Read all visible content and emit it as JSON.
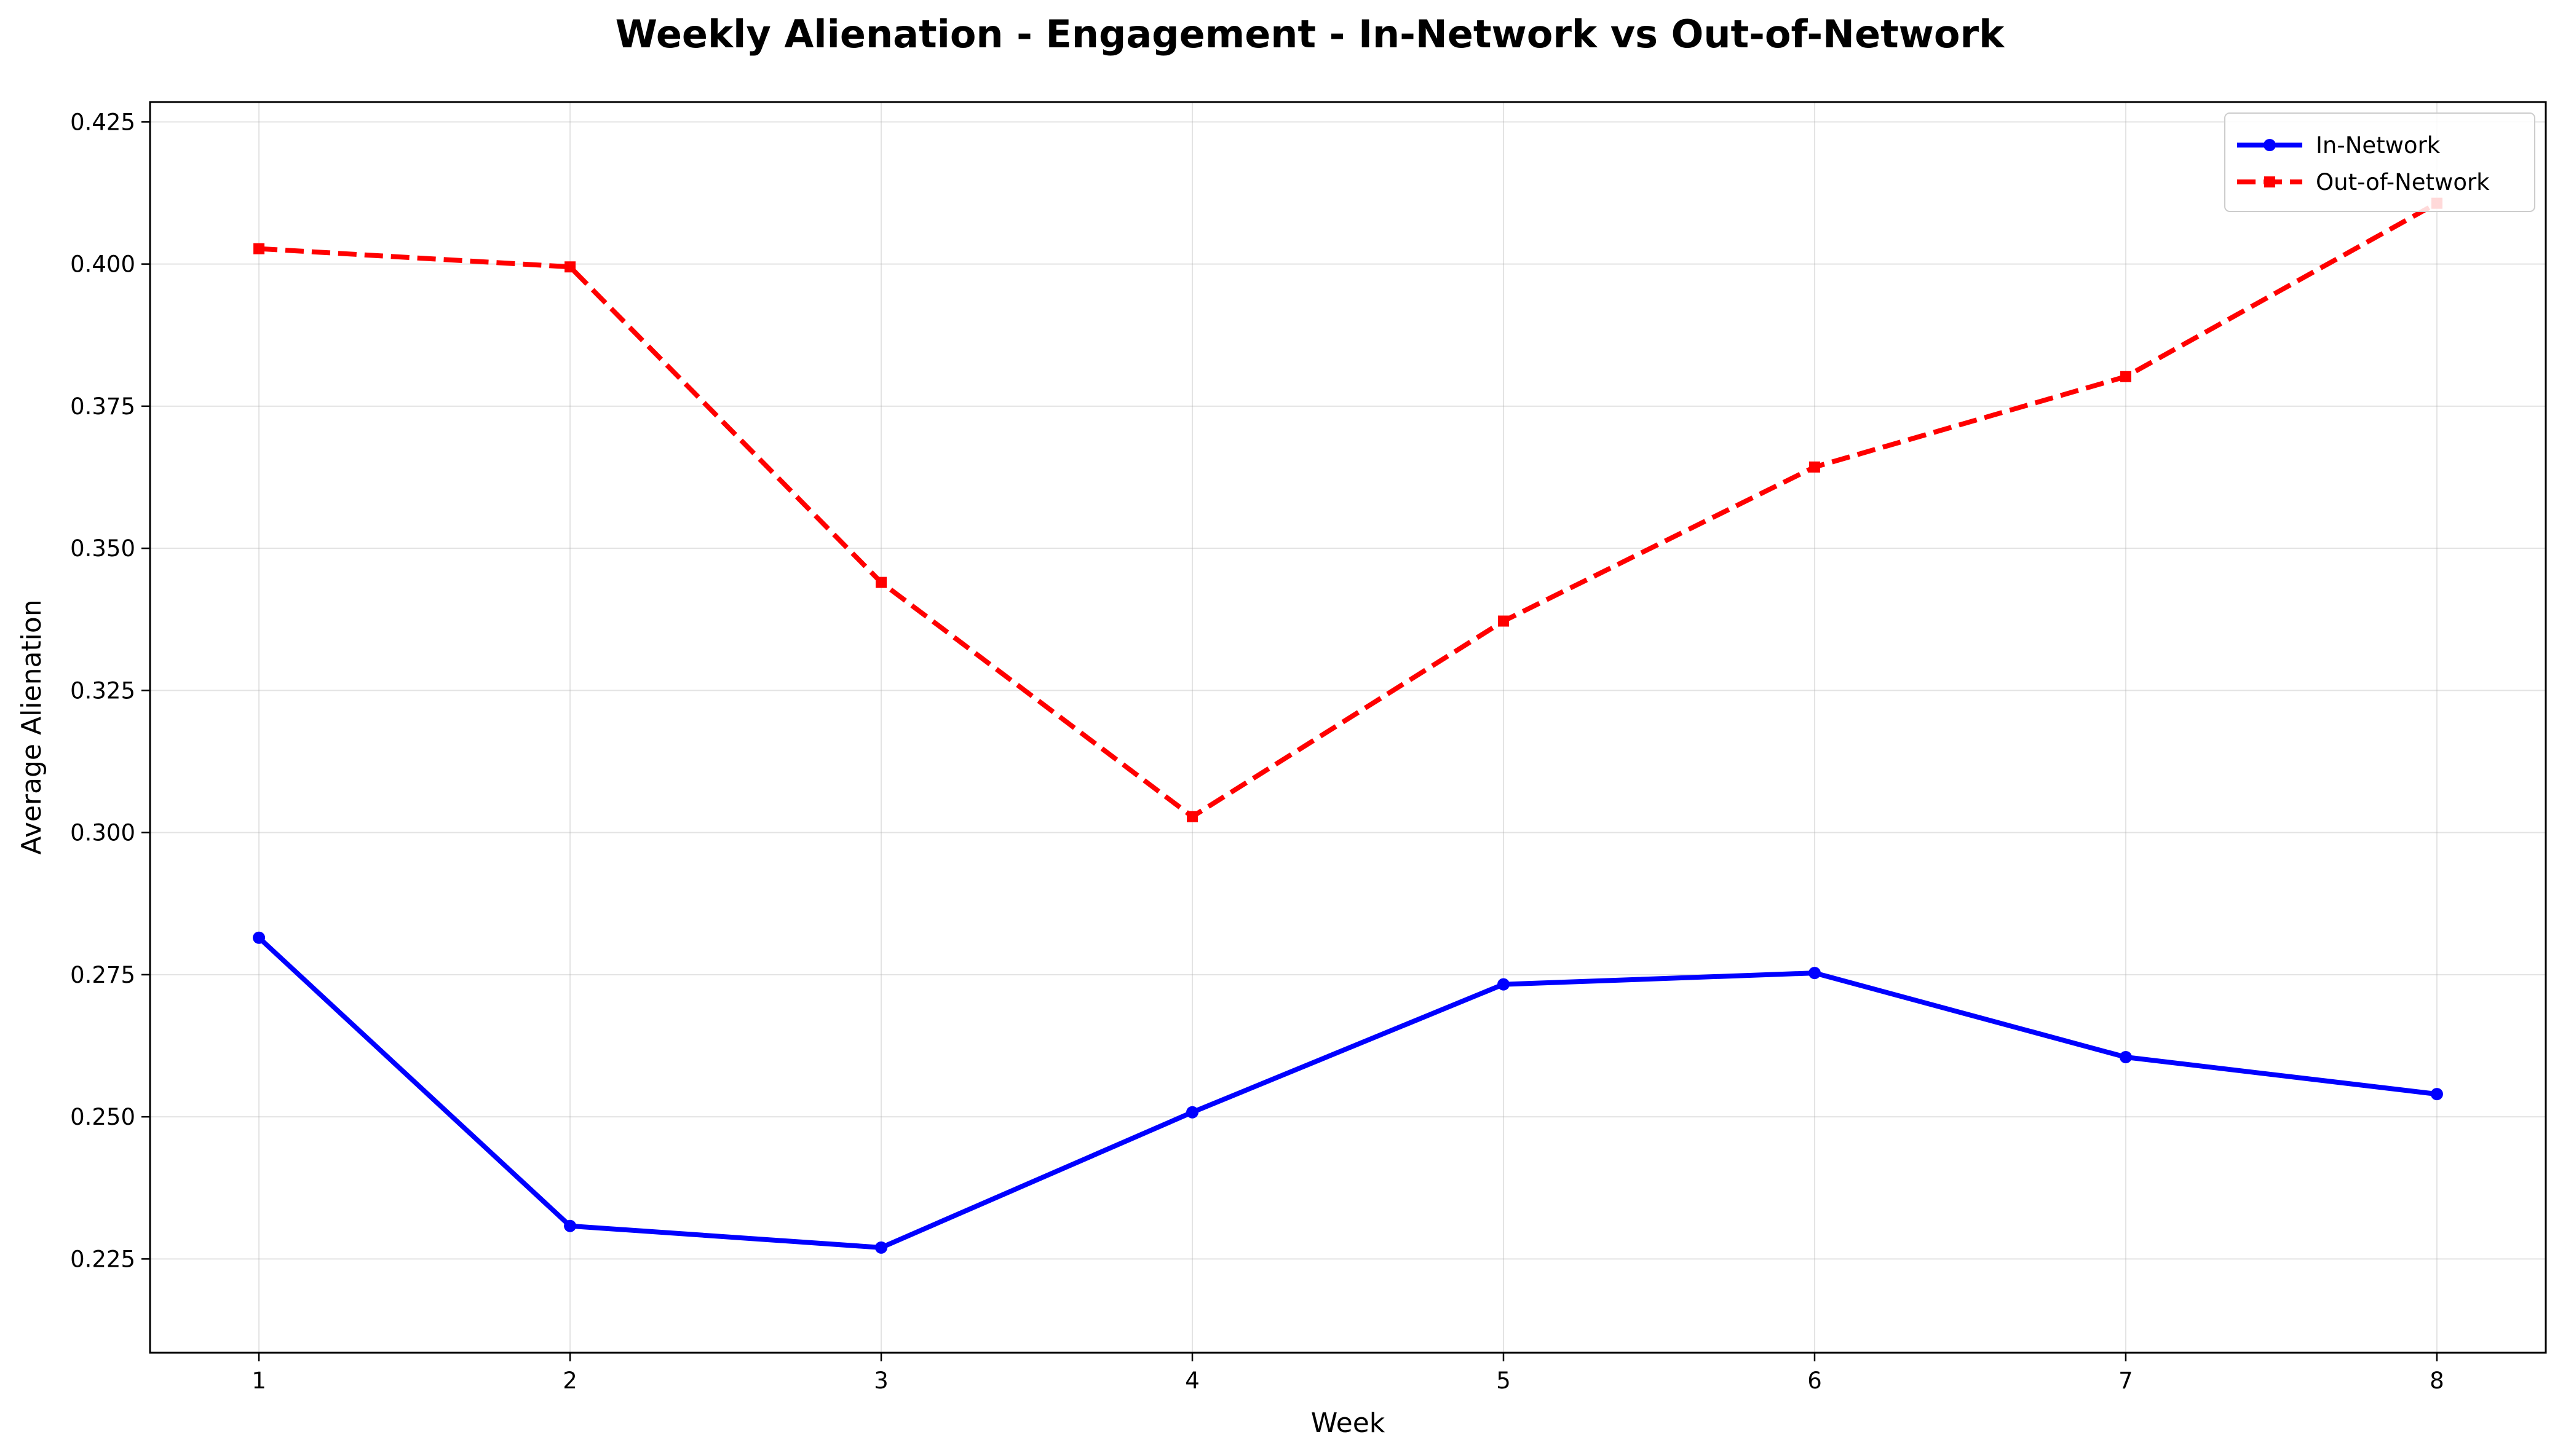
{
  "chart_data": {
    "type": "line",
    "title": "Weekly Alienation - Engagement - In-Network vs Out-of-Network",
    "xlabel": "Week",
    "ylabel": "Average Alienation",
    "x": [
      1,
      2,
      3,
      4,
      5,
      6,
      7,
      8
    ],
    "xlim": [
      0.65,
      8.35
    ],
    "ylim": [
      0.2085,
      0.4285
    ],
    "xticks": [
      "1",
      "2",
      "3",
      "4",
      "5",
      "6",
      "7",
      "8"
    ],
    "yticks": [
      "0.225",
      "0.250",
      "0.275",
      "0.300",
      "0.325",
      "0.350",
      "0.375",
      "0.400",
      "0.425"
    ],
    "grid": true,
    "legend_position": "top-right",
    "series": [
      {
        "name": "In-Network",
        "color": "#0000ff",
        "line_style": "solid",
        "marker": "circle",
        "values": [
          0.2815,
          0.2308,
          0.227,
          0.2508,
          0.2733,
          0.2753,
          0.2605,
          0.254
        ]
      },
      {
        "name": "Out-of-Network",
        "color": "#ff0000",
        "line_style": "dashed",
        "marker": "square",
        "values": [
          0.4027,
          0.3995,
          0.344,
          0.3028,
          0.3372,
          0.3643,
          0.3802,
          0.4107
        ]
      }
    ]
  }
}
